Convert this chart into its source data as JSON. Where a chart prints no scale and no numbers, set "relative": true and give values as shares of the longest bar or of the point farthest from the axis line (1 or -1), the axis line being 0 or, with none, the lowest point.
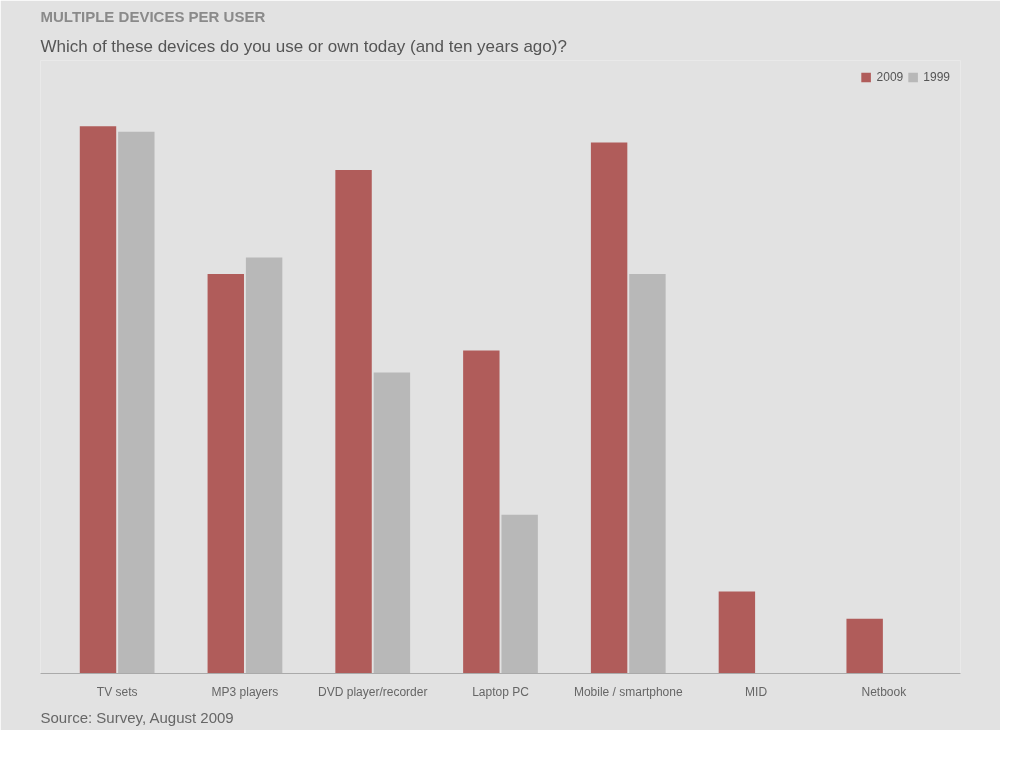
{
  "chart_data": {
    "type": "bar",
    "title": "MULTIPLE DEVICES PER USER",
    "subtitle": "Which of these devices do you use or own today (and ten years ago)?",
    "categories": [
      "TV sets",
      "MP3 players",
      "DVD player/recorder",
      "Laptop PC",
      "Mobile / smartphone",
      "MID",
      "Netbook"
    ],
    "relative": true,
    "series": [
      {
        "name": "2009",
        "color": "#b05c5a",
        "values": [
          1.0,
          0.73,
          0.92,
          0.59,
          0.97,
          0.15,
          0.1
        ]
      },
      {
        "name": "1999",
        "color": "#b8b8b8",
        "values": [
          0.99,
          0.76,
          0.55,
          0.29,
          0.73,
          null,
          null
        ]
      }
    ],
    "legend": "top right",
    "annotations": [
      "Source: Survey, August 2009"
    ]
  }
}
